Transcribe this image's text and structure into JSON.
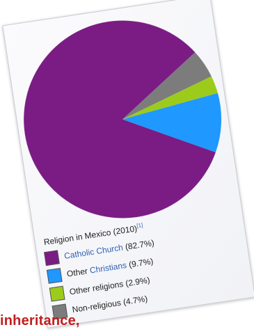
{
  "chart_data": {
    "type": "pie",
    "title": "",
    "categories": [
      "Catholic Church",
      "Other Christians",
      "Other religions",
      "Non-religious"
    ],
    "values": [
      82.7,
      9.7,
      2.9,
      4.7
    ],
    "colors": [
      "#7a1c84",
      "#1f98ff",
      "#9ccb1c",
      "#7c7c7c"
    ],
    "caption": {
      "text": "Religion in Mexico (2010)",
      "ref": "[1]"
    },
    "legend": [
      {
        "swatch_color": "#7a1c84",
        "prefix": "",
        "link": "Catholic Church",
        "suffix": " (82.7%)"
      },
      {
        "swatch_color": "#1f98ff",
        "prefix": "Other ",
        "link": "Christians",
        "suffix": " (9.7%)"
      },
      {
        "swatch_color": "#9ccb1c",
        "prefix": "Other religions (2.9%)",
        "link": "",
        "suffix": ""
      },
      {
        "swatch_color": "#7c7c7c",
        "prefix": "Non-religious (4.7%)",
        "link": "",
        "suffix": ""
      }
    ]
  },
  "page_text": {
    "inheritance": "inheritance,"
  }
}
